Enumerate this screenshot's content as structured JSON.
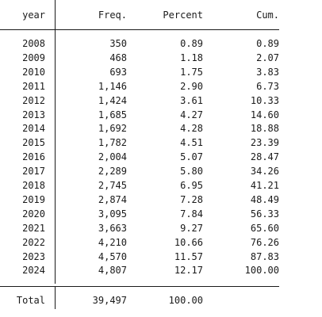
{
  "table": {
    "headers": {
      "year": "year",
      "freq": "Freq.",
      "percent": "Percent",
      "cum": "Cum."
    },
    "rows": [
      {
        "year": "2008",
        "freq": "350",
        "percent": "0.89",
        "cum": "0.89"
      },
      {
        "year": "2009",
        "freq": "468",
        "percent": "1.18",
        "cum": "2.07"
      },
      {
        "year": "2010",
        "freq": "693",
        "percent": "1.75",
        "cum": "3.83"
      },
      {
        "year": "2011",
        "freq": "1,146",
        "percent": "2.90",
        "cum": "6.73"
      },
      {
        "year": "2012",
        "freq": "1,424",
        "percent": "3.61",
        "cum": "10.33"
      },
      {
        "year": "2013",
        "freq": "1,685",
        "percent": "4.27",
        "cum": "14.60"
      },
      {
        "year": "2014",
        "freq": "1,692",
        "percent": "4.28",
        "cum": "18.88"
      },
      {
        "year": "2015",
        "freq": "1,782",
        "percent": "4.51",
        "cum": "23.39"
      },
      {
        "year": "2016",
        "freq": "2,004",
        "percent": "5.07",
        "cum": "28.47"
      },
      {
        "year": "2017",
        "freq": "2,289",
        "percent": "5.80",
        "cum": "34.26"
      },
      {
        "year": "2018",
        "freq": "2,745",
        "percent": "6.95",
        "cum": "41.21"
      },
      {
        "year": "2019",
        "freq": "2,874",
        "percent": "7.28",
        "cum": "48.49"
      },
      {
        "year": "2020",
        "freq": "3,095",
        "percent": "7.84",
        "cum": "56.33"
      },
      {
        "year": "2021",
        "freq": "3,663",
        "percent": "9.27",
        "cum": "65.60"
      },
      {
        "year": "2022",
        "freq": "4,210",
        "percent": "10.66",
        "cum": "76.26"
      },
      {
        "year": "2023",
        "freq": "4,570",
        "percent": "11.57",
        "cum": "87.83"
      },
      {
        "year": "2024",
        "freq": "4,807",
        "percent": "12.17",
        "cum": "100.00"
      }
    ],
    "total": {
      "label": "Total",
      "freq": "39,497",
      "percent": "100.00"
    }
  },
  "colors": {
    "text": "#1a1a1a",
    "rule": "#1a1a1a",
    "background": "#ffffff"
  }
}
